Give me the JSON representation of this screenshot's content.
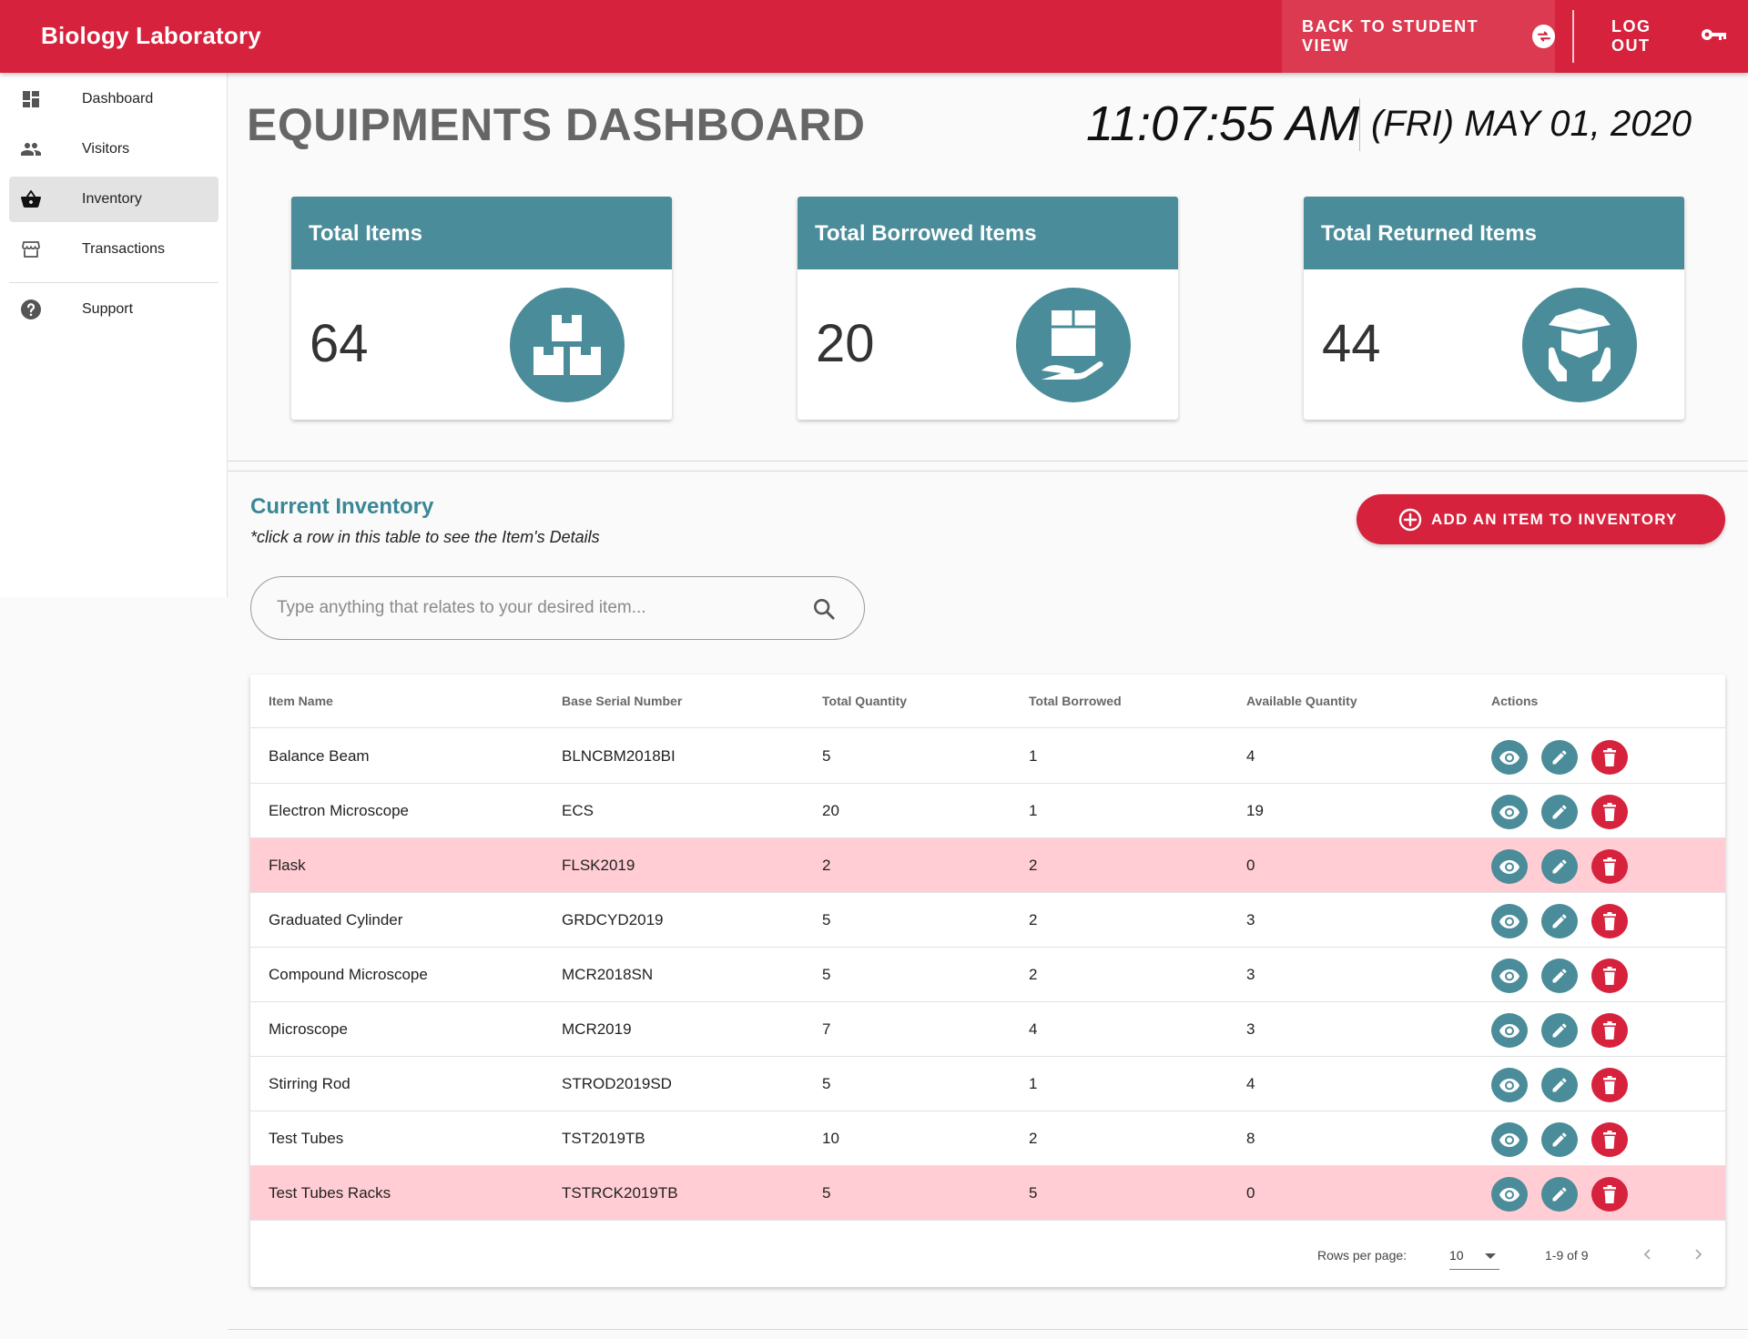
{
  "app": {
    "title": "Biology Laboratory"
  },
  "topbar": {
    "student_view_label": "BACK TO STUDENT VIEW",
    "logout_label": "LOG OUT"
  },
  "sidebar": {
    "items": [
      {
        "label": "Dashboard",
        "icon": "dashboard-icon"
      },
      {
        "label": "Visitors",
        "icon": "people-icon"
      },
      {
        "label": "Inventory",
        "icon": "basket-icon",
        "active": true
      },
      {
        "label": "Transactions",
        "icon": "store-icon"
      },
      {
        "label": "Support",
        "icon": "help-icon"
      }
    ]
  },
  "header": {
    "title": "EQUIPMENTS DASHBOARD",
    "time": "11:07:55 AM",
    "date": "(FRI) MAY 01, 2020"
  },
  "stats": [
    {
      "title": "Total Items",
      "value": "64",
      "icon": "boxes-icon"
    },
    {
      "title": "Total Borrowed Items",
      "value": "20",
      "icon": "box-in-hand-icon"
    },
    {
      "title": "Total Returned Items",
      "value": "44",
      "icon": "open-box-hands-icon"
    }
  ],
  "inventory": {
    "title": "Current Inventory",
    "hint": "*click a row in this table to see the Item's Details",
    "add_button": "ADD AN ITEM TO INVENTORY",
    "search_placeholder": "Type anything that relates to your desired item...",
    "columns": [
      "Item Name",
      "Base Serial Number",
      "Total Quantity",
      "Total Borrowed",
      "Available Quantity",
      "Actions"
    ],
    "rows": [
      {
        "name": "Balance Beam",
        "serial": "BLNCBM2018BI",
        "total": "5",
        "borrowed": "1",
        "available": "4",
        "low": false
      },
      {
        "name": "Electron Microscope",
        "serial": "ECS",
        "total": "20",
        "borrowed": "1",
        "available": "19",
        "low": false
      },
      {
        "name": "Flask",
        "serial": "FLSK2019",
        "total": "2",
        "borrowed": "2",
        "available": "0",
        "low": true
      },
      {
        "name": "Graduated Cylinder",
        "serial": "GRDCYD2019",
        "total": "5",
        "borrowed": "2",
        "available": "3",
        "low": false
      },
      {
        "name": "Compound Microscope",
        "serial": "MCR2018SN",
        "total": "5",
        "borrowed": "2",
        "available": "3",
        "low": false
      },
      {
        "name": "Microscope",
        "serial": "MCR2019",
        "total": "7",
        "borrowed": "4",
        "available": "3",
        "low": false
      },
      {
        "name": "Stirring Rod",
        "serial": "STROD2019SD",
        "total": "5",
        "borrowed": "1",
        "available": "4",
        "low": false
      },
      {
        "name": "Test Tubes",
        "serial": "TST2019TB",
        "total": "10",
        "borrowed": "2",
        "available": "8",
        "low": false
      },
      {
        "name": "Test Tubes Racks",
        "serial": "TSTRCK2019TB",
        "total": "5",
        "borrowed": "5",
        "available": "0",
        "low": true
      }
    ],
    "pagination": {
      "rows_per_page_label": "Rows per page:",
      "rows_per_page": "10",
      "range": "1-9 of 9"
    }
  },
  "colors": {
    "brand_red": "#d6223c",
    "teal": "#4a8c99",
    "low_stock_row": "#ffcdd3"
  }
}
